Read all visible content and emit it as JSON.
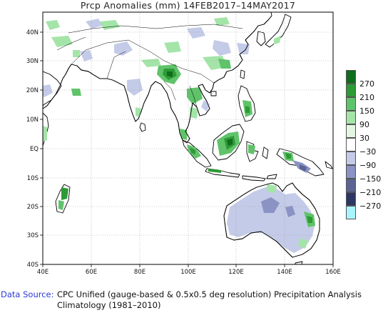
{
  "title": "Prcp Anomalies (mm) 14FEB2017–14MAY2017",
  "map": {
    "lon_ticks": [
      "40E",
      "60E",
      "80E",
      "100E",
      "120E",
      "140E",
      "160E"
    ],
    "lat_ticks": [
      "40N",
      "30N",
      "20N",
      "10N",
      "EQ",
      "10S",
      "20S",
      "30S",
      "40S"
    ],
    "land_color": "#ffffff",
    "coast_color": "#000000",
    "grid_color": "#999999"
  },
  "legend": {
    "labels": [
      "270",
      "210",
      "150",
      "90",
      "30",
      "−30",
      "−90",
      "−150",
      "−210",
      "−270"
    ],
    "colors": [
      "#0f6d1c",
      "#2e9a35",
      "#5fc36a",
      "#a4e4a8",
      "#e3f7e1",
      "#ffffff",
      "#c4cbe8",
      "#8a93c4",
      "#5b6493",
      "#2d3764",
      "#a9f5ff"
    ]
  },
  "source": {
    "key": "Data Source:",
    "line1": "CPC Unified (gauge-based & 0.5x0.5 deg resolution) Precipitation Analysis",
    "line2": "Climatology (1981–2010)"
  }
}
